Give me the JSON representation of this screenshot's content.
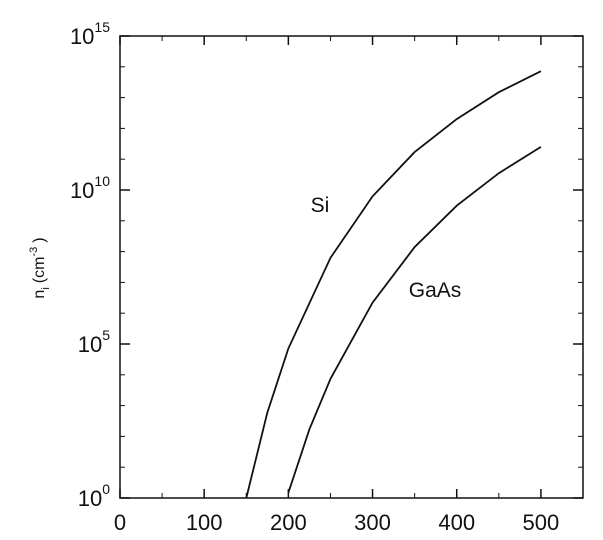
{
  "chart_data": {
    "type": "line",
    "ylabel": {
      "text": "n",
      "subscript": "i",
      "unit": "(cm",
      "superscript": "-3",
      "end": ")"
    },
    "log_y": true,
    "xlim": [
      0,
      550
    ],
    "xticks": [
      0,
      100,
      200,
      300,
      400,
      500
    ],
    "ylim": [
      1,
      1000000000000000.0
    ],
    "yticks": [
      {
        "value": 1,
        "label": "10",
        "exponent": "0"
      },
      {
        "value": 100000,
        "label": "10",
        "exponent": "5"
      },
      {
        "value": 10000000000,
        "label": "10",
        "exponent": "10"
      },
      {
        "value": 1000000000000000.0,
        "label": "10",
        "exponent": "15"
      }
    ],
    "series": [
      {
        "name": "Si",
        "color": "#111111",
        "x": [
          150,
          175,
          200,
          250,
          300,
          350,
          400,
          450,
          500
        ],
        "values": [
          1,
          590,
          72000,
          63000000,
          6200000000,
          170000000000,
          2000000000000,
          15000000000000,
          72000000000000
        ]
      },
      {
        "name": "GaAs",
        "color": "#111111",
        "x": [
          200,
          225,
          250,
          300,
          350,
          400,
          450,
          500
        ],
        "values": [
          1.5,
          170,
          7400,
          2200000,
          140000000,
          3100000000,
          35000000000,
          250000000000
        ]
      }
    ]
  }
}
